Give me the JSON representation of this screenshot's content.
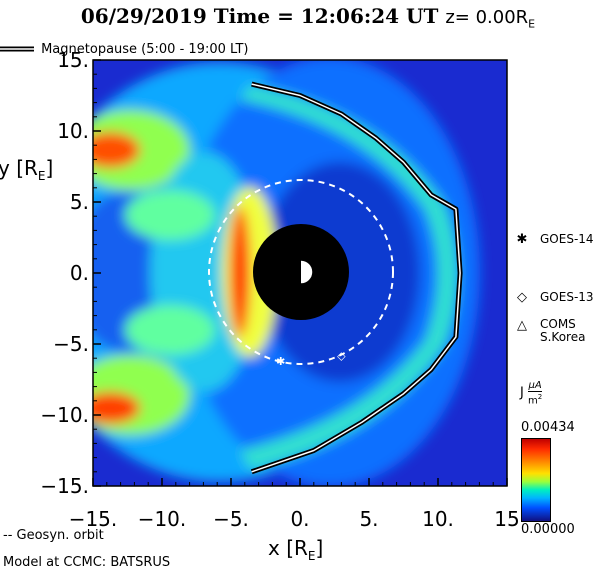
{
  "header": {
    "title": "06/29/2019 Time = 12:06:24 UT",
    "z_label": "z= 0.00R",
    "z_sub": "E"
  },
  "legend": {
    "magnetopause": "Magnetopause (5:00 - 19:00 LT)",
    "geosyn": "-- Geosyn. orbit"
  },
  "satellites": [
    {
      "symbol": "✱",
      "label": "GOES-14"
    },
    {
      "symbol": "◇",
      "label": "GOES-13"
    },
    {
      "symbol": "△",
      "label": "COMS\nS.Korea"
    }
  ],
  "colorbar": {
    "label": "J",
    "unit_num": "μA",
    "unit_den": "m",
    "unit_exp": "2",
    "max": "0.00434",
    "min": "0.00000",
    "stops": [
      "#c00000",
      "#ff8a00",
      "#ffe000",
      "#9cff3a",
      "#00f0c0",
      "#00b4ff",
      "#0050ff",
      "#101080"
    ]
  },
  "footer": {
    "model": "Model at CCMC: BATSRUS"
  },
  "chart_data": {
    "type": "heatmap",
    "xlabel": "x [R",
    "xlabel_sub": "E",
    "ylabel": "y [R",
    "ylabel_sub": "E",
    "xlim": [
      -15,
      15
    ],
    "ylim": [
      -15,
      15
    ],
    "xticks": [
      -15,
      -10,
      -5,
      0,
      5,
      10,
      15
    ],
    "xtick_labels": [
      "-15.",
      "-10.",
      "-5.",
      "0.",
      "5.",
      "10.",
      "15"
    ],
    "yticks": [
      15,
      10,
      5,
      0,
      -5,
      -10,
      -15
    ],
    "ytick_labels": [
      "15.",
      "10.",
      "5.",
      "0.",
      "-5.",
      "-10.",
      "-15."
    ],
    "earth_radius": 3.5,
    "geosync_radius": 6.6,
    "magnetopause_points": [
      [
        -3.5,
        13.3
      ],
      [
        0,
        12.5
      ],
      [
        3,
        11.2
      ],
      [
        5.5,
        9.5
      ],
      [
        7.5,
        7.8
      ],
      [
        9.5,
        5.5
      ],
      [
        11.3,
        4.5
      ],
      [
        11.6,
        0
      ],
      [
        11.3,
        -4.5
      ],
      [
        9.5,
        -6.8
      ],
      [
        7.5,
        -8.5
      ],
      [
        4.5,
        -10.5
      ],
      [
        1,
        -12.5
      ],
      [
        -3.5,
        -14
      ]
    ],
    "sat_positions": [
      {
        "x": -1.4,
        "y": -6.2,
        "symbol": "✱"
      },
      {
        "x": 3.0,
        "y": -5.8,
        "symbol": "◇"
      }
    ]
  }
}
